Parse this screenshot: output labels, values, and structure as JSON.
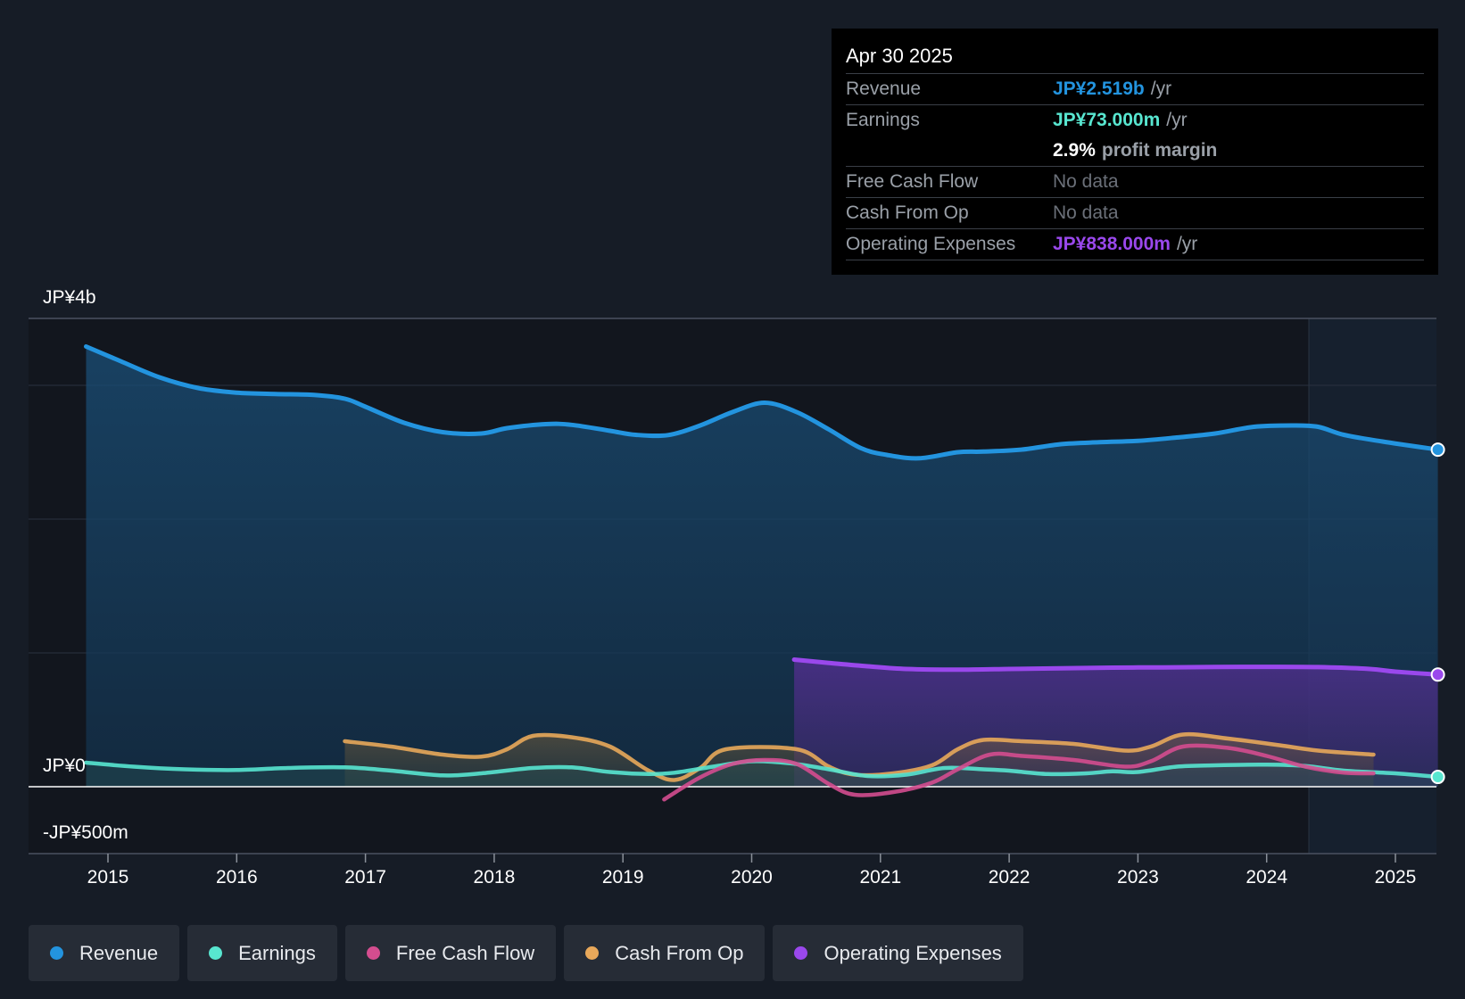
{
  "chart_data": {
    "type": "area",
    "x_ticks": [
      "2015",
      "2016",
      "2017",
      "2018",
      "2019",
      "2020",
      "2021",
      "2022",
      "2023",
      "2024",
      "2025"
    ],
    "y_labels": {
      "top": "JP¥4b",
      "zero": "JP¥0",
      "bottom": "-JP¥500m"
    },
    "ylim_millions": [
      -500,
      3500
    ],
    "series": [
      {
        "name": "Revenue",
        "color": "#2394df",
        "points": [
          [
            2014.83,
            3290
          ],
          [
            2015.1,
            3180
          ],
          [
            2015.4,
            3060
          ],
          [
            2015.7,
            2980
          ],
          [
            2016.0,
            2945
          ],
          [
            2016.3,
            2935
          ],
          [
            2016.6,
            2928
          ],
          [
            2016.84,
            2900
          ],
          [
            2017.0,
            2840
          ],
          [
            2017.3,
            2720
          ],
          [
            2017.6,
            2650
          ],
          [
            2017.9,
            2640
          ],
          [
            2018.1,
            2680
          ],
          [
            2018.4,
            2710
          ],
          [
            2018.6,
            2705
          ],
          [
            2018.9,
            2660
          ],
          [
            2019.1,
            2630
          ],
          [
            2019.35,
            2628
          ],
          [
            2019.6,
            2700
          ],
          [
            2019.85,
            2800
          ],
          [
            2020.1,
            2870
          ],
          [
            2020.35,
            2800
          ],
          [
            2020.6,
            2670
          ],
          [
            2020.85,
            2530
          ],
          [
            2021.05,
            2480
          ],
          [
            2021.3,
            2455
          ],
          [
            2021.6,
            2500
          ],
          [
            2021.8,
            2505
          ],
          [
            2022.1,
            2520
          ],
          [
            2022.4,
            2560
          ],
          [
            2022.7,
            2575
          ],
          [
            2023.0,
            2585
          ],
          [
            2023.3,
            2610
          ],
          [
            2023.6,
            2640
          ],
          [
            2023.9,
            2690
          ],
          [
            2024.2,
            2700
          ],
          [
            2024.4,
            2690
          ],
          [
            2024.6,
            2630
          ],
          [
            2024.9,
            2580
          ],
          [
            2025.33,
            2519
          ]
        ]
      },
      {
        "name": "Earnings",
        "color": "#58e6d0",
        "points": [
          [
            2014.83,
            180
          ],
          [
            2015.2,
            150
          ],
          [
            2015.6,
            130
          ],
          [
            2016.0,
            125
          ],
          [
            2016.4,
            140
          ],
          [
            2016.84,
            145
          ],
          [
            2017.2,
            120
          ],
          [
            2017.6,
            85
          ],
          [
            2017.9,
            100
          ],
          [
            2018.3,
            140
          ],
          [
            2018.6,
            145
          ],
          [
            2018.9,
            110
          ],
          [
            2019.2,
            95
          ],
          [
            2019.4,
            105
          ],
          [
            2019.7,
            150
          ],
          [
            2020.0,
            190
          ],
          [
            2020.3,
            175
          ],
          [
            2020.6,
            130
          ],
          [
            2020.9,
            80
          ],
          [
            2021.2,
            90
          ],
          [
            2021.5,
            140
          ],
          [
            2021.8,
            130
          ],
          [
            2022.0,
            120
          ],
          [
            2022.3,
            95
          ],
          [
            2022.6,
            100
          ],
          [
            2022.8,
            115
          ],
          [
            2023.0,
            110
          ],
          [
            2023.3,
            150
          ],
          [
            2023.6,
            160
          ],
          [
            2024.0,
            165
          ],
          [
            2024.3,
            155
          ],
          [
            2024.6,
            120
          ],
          [
            2025.0,
            100
          ],
          [
            2025.33,
            73
          ]
        ]
      },
      {
        "name": "Free Cash Flow",
        "color": "#d44d8f",
        "points": [
          [
            2019.32,
            -95
          ],
          [
            2019.6,
            70
          ],
          [
            2019.85,
            170
          ],
          [
            2020.1,
            200
          ],
          [
            2020.35,
            170
          ],
          [
            2020.6,
            20
          ],
          [
            2020.8,
            -60
          ],
          [
            2021.1,
            -40
          ],
          [
            2021.4,
            30
          ],
          [
            2021.6,
            130
          ],
          [
            2021.85,
            240
          ],
          [
            2022.1,
            230
          ],
          [
            2022.5,
            200
          ],
          [
            2022.9,
            150
          ],
          [
            2023.1,
            190
          ],
          [
            2023.35,
            300
          ],
          [
            2023.7,
            290
          ],
          [
            2024.0,
            230
          ],
          [
            2024.3,
            150
          ],
          [
            2024.6,
            105
          ],
          [
            2024.83,
            100
          ]
        ]
      },
      {
        "name": "Cash From Op",
        "color": "#e8a85a",
        "points": [
          [
            2016.84,
            340
          ],
          [
            2017.2,
            300
          ],
          [
            2017.6,
            240
          ],
          [
            2017.9,
            225
          ],
          [
            2018.1,
            280
          ],
          [
            2018.3,
            380
          ],
          [
            2018.6,
            370
          ],
          [
            2018.9,
            300
          ],
          [
            2019.2,
            120
          ],
          [
            2019.4,
            50
          ],
          [
            2019.6,
            140
          ],
          [
            2019.8,
            280
          ],
          [
            2020.35,
            280
          ],
          [
            2020.6,
            150
          ],
          [
            2020.8,
            90
          ],
          [
            2021.1,
            100
          ],
          [
            2021.4,
            160
          ],
          [
            2021.6,
            280
          ],
          [
            2021.8,
            350
          ],
          [
            2022.1,
            340
          ],
          [
            2022.5,
            320
          ],
          [
            2022.9,
            270
          ],
          [
            2023.1,
            300
          ],
          [
            2023.35,
            390
          ],
          [
            2023.7,
            360
          ],
          [
            2024.1,
            310
          ],
          [
            2024.4,
            270
          ],
          [
            2024.83,
            240
          ]
        ]
      },
      {
        "name": "Operating Expenses",
        "color": "#9a48ec",
        "points": [
          [
            2020.33,
            950
          ],
          [
            2020.6,
            925
          ],
          [
            2020.9,
            900
          ],
          [
            2021.2,
            880
          ],
          [
            2021.6,
            875
          ],
          [
            2022.0,
            880
          ],
          [
            2022.4,
            885
          ],
          [
            2022.8,
            890
          ],
          [
            2023.2,
            892
          ],
          [
            2023.6,
            895
          ],
          [
            2024.0,
            896
          ],
          [
            2024.4,
            894
          ],
          [
            2024.8,
            880
          ],
          [
            2025.0,
            860
          ],
          [
            2025.33,
            838
          ]
        ]
      }
    ]
  },
  "tooltip": {
    "date": "Apr 30 2025",
    "rows": [
      {
        "label": "Revenue",
        "value": "JP¥2.519b",
        "unit": "/yr",
        "color": "#2394df"
      },
      {
        "label": "Earnings",
        "value": "JP¥73.000m",
        "unit": "/yr",
        "color": "#58e6d0"
      },
      {
        "label": "",
        "value": "2.9%",
        "unit": "profit margin",
        "color": "#ffffff"
      },
      {
        "label": "Free Cash Flow",
        "value": "No data",
        "unit": "",
        "color": "#6b7079"
      },
      {
        "label": "Cash From Op",
        "value": "No data",
        "unit": "",
        "color": "#6b7079"
      },
      {
        "label": "Operating Expenses",
        "value": "JP¥838.000m",
        "unit": "/yr",
        "color": "#9a48ec"
      }
    ]
  },
  "legend": [
    {
      "label": "Revenue",
      "color": "#2394df"
    },
    {
      "label": "Earnings",
      "color": "#58e6d0"
    },
    {
      "label": "Free Cash Flow",
      "color": "#d44d8f"
    },
    {
      "label": "Cash From Op",
      "color": "#e8a85a"
    },
    {
      "label": "Operating Expenses",
      "color": "#9a48ec"
    }
  ]
}
